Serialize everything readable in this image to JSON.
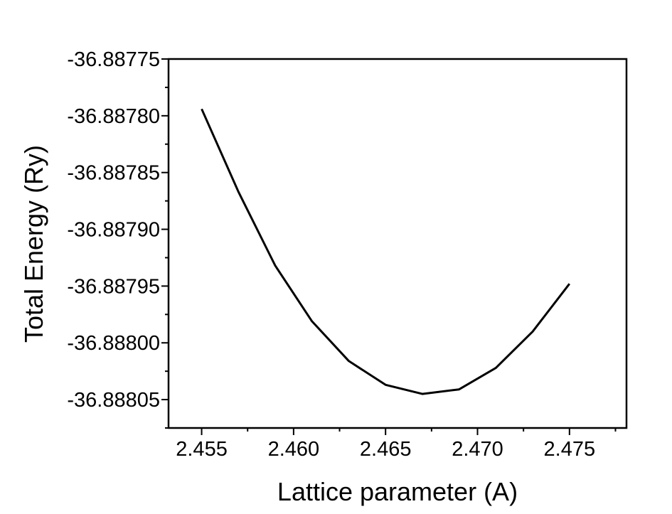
{
  "chart_data": {
    "type": "line",
    "title": "",
    "xlabel": "Lattice parameter (A)",
    "ylabel": "Total Energy (Ry)",
    "xlim": [
      2.4532,
      2.4781
    ],
    "ylim": [
      -36.888075,
      -36.88775
    ],
    "x_ticks": [
      2.455,
      2.46,
      2.465,
      2.47,
      2.475
    ],
    "x_tick_labels": [
      "2.455",
      "2.460",
      "2.465",
      "2.470",
      "2.475"
    ],
    "y_ticks": [
      -36.88775,
      -36.8878,
      -36.88785,
      -36.8879,
      -36.88795,
      -36.888,
      -36.88805
    ],
    "y_tick_labels": [
      "-36.88775",
      "-36.88780",
      "-36.88785",
      "-36.88790",
      "-36.88795",
      "-36.88800",
      "-36.88805"
    ],
    "grid": false,
    "series": [
      {
        "x": [
          2.455,
          2.457,
          2.459,
          2.461,
          2.463,
          2.465,
          2.467,
          2.469,
          2.471,
          2.473,
          2.475
        ],
        "y": [
          -36.887794,
          -36.887867,
          -36.887932,
          -36.887981,
          -36.888016,
          -36.888037,
          -36.888045,
          -36.888041,
          -36.888022,
          -36.88799,
          -36.887948
        ],
        "color": "#000000"
      }
    ]
  }
}
